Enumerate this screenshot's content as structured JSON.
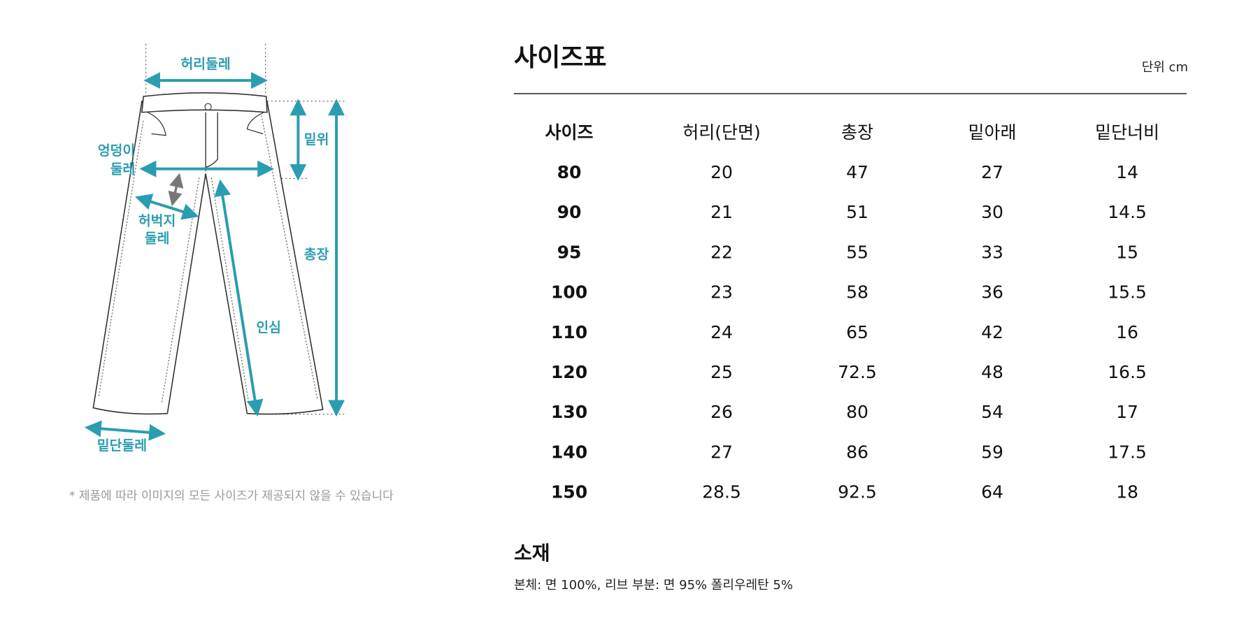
{
  "diagram": {
    "labels": {
      "waist": "허리둘레",
      "rise": "밑위",
      "hip": [
        "엉덩이",
        "둘레"
      ],
      "thigh": [
        "허벅지",
        "둘레"
      ],
      "length": "총장",
      "inseam": "인심",
      "hem": "밑단둘레"
    },
    "note": "* 제품에 따라 이미지의 모든 사이즈가 제공되지 않을 수 있습니다"
  },
  "header": {
    "title": "사이즈표",
    "unit": "단위 cm"
  },
  "table": {
    "columns": [
      "사이즈",
      "허리(단면)",
      "총장",
      "밑아래",
      "밑단너비"
    ],
    "rows": [
      [
        "80",
        "20",
        "47",
        "27",
        "14"
      ],
      [
        "90",
        "21",
        "51",
        "30",
        "14.5"
      ],
      [
        "95",
        "22",
        "55",
        "33",
        "15"
      ],
      [
        "100",
        "23",
        "58",
        "36",
        "15.5"
      ],
      [
        "110",
        "24",
        "65",
        "42",
        "16"
      ],
      [
        "120",
        "25",
        "72.5",
        "48",
        "16.5"
      ],
      [
        "130",
        "26",
        "80",
        "54",
        "17"
      ],
      [
        "140",
        "27",
        "86",
        "59",
        "17.5"
      ],
      [
        "150",
        "28.5",
        "92.5",
        "64",
        "18"
      ]
    ]
  },
  "material": {
    "title": "소재",
    "text": "본체: 면 100%, 리브 부분: 면 95% 폴리우레탄 5%"
  }
}
